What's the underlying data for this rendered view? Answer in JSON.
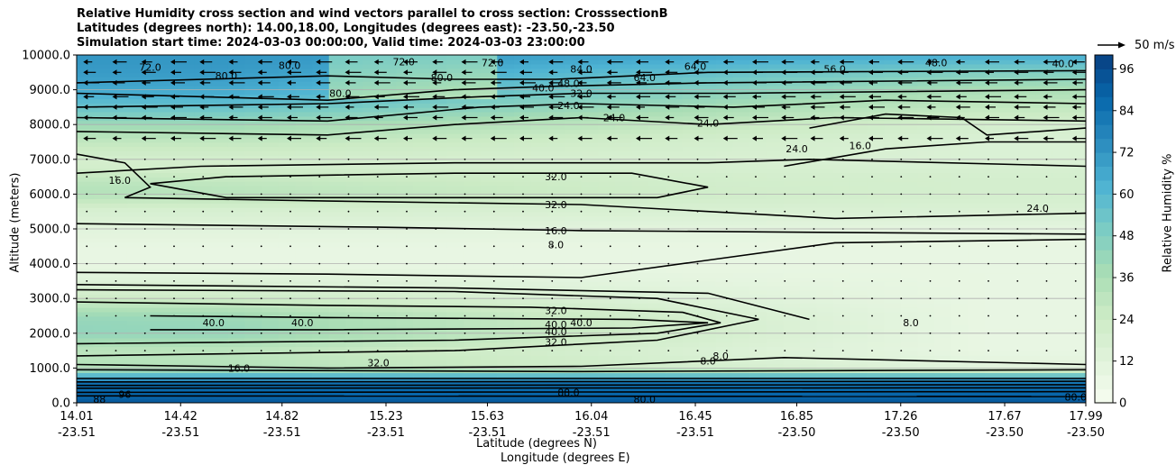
{
  "chart_data": {
    "type": "heatmap",
    "title_lines": [
      "Relative Humidity cross section and wind vectors parallel to cross section: CrosssectionB",
      "Latitudes (degrees north): 14.00,18.00, Longitudes (degrees east): -23.50,-23.50",
      "Simulation start time: 2024-03-03 00:00:00, Valid time: 2024-03-03 23:00:00"
    ],
    "ylabel": "Altitude (meters)",
    "xlabel_lat": "Latitude (degrees N)",
    "xlabel_lon": "Longitude (degrees E)",
    "ylim": [
      0,
      10000
    ],
    "yticks": [
      "0.0",
      "1000.0",
      "2000.0",
      "3000.0",
      "4000.0",
      "5000.0",
      "6000.0",
      "7000.0",
      "8000.0",
      "9000.0",
      "10000.0"
    ],
    "xticks_lat": [
      "14.01",
      "14.42",
      "14.82",
      "15.23",
      "15.63",
      "16.04",
      "16.45",
      "16.85",
      "17.26",
      "17.67",
      "17.99"
    ],
    "xticks_lon": [
      "-23.51",
      "-23.51",
      "-23.51",
      "-23.51",
      "-23.51",
      "-23.51",
      "-23.51",
      "-23.50",
      "-23.50",
      "-23.50",
      "-23.50"
    ],
    "colorbar": {
      "label": "Relative Humidity %",
      "min": 0,
      "max": 100,
      "ticks": [
        "0",
        "12",
        "24",
        "36",
        "48",
        "60",
        "72",
        "84",
        "96"
      ]
    },
    "quiver_key": "50 m/s",
    "profile_altitudes": [
      0,
      300,
      600,
      800,
      1000,
      1500,
      2000,
      2500,
      3000,
      3500,
      4000,
      4500,
      5000,
      5500,
      6000,
      6500,
      7000,
      7500,
      8000,
      8500,
      9000,
      9500,
      10000
    ],
    "profile_rh_left": [
      92,
      88,
      84,
      60,
      34,
      30,
      38,
      36,
      24,
      14,
      8,
      8,
      12,
      18,
      26,
      22,
      20,
      28,
      40,
      55,
      66,
      70,
      72
    ],
    "profile_rh_right": [
      92,
      88,
      82,
      55,
      12,
      8,
      8,
      8,
      8,
      8,
      8,
      8,
      10,
      16,
      20,
      20,
      16,
      16,
      20,
      28,
      36,
      48,
      64
    ],
    "contour_labels": [
      {
        "text": "72.0",
        "lat": 14.3,
        "z": 9650
      },
      {
        "text": "80.0",
        "lat": 14.6,
        "z": 9400
      },
      {
        "text": "80.0",
        "lat": 14.85,
        "z": 9700
      },
      {
        "text": "80.0",
        "lat": 15.05,
        "z": 8900
      },
      {
        "text": "72.0",
        "lat": 15.3,
        "z": 9800
      },
      {
        "text": "80.0",
        "lat": 15.45,
        "z": 9350
      },
      {
        "text": "72.0",
        "lat": 15.65,
        "z": 9780
      },
      {
        "text": "84.0",
        "lat": 16.0,
        "z": 9600
      },
      {
        "text": "64.0",
        "lat": 16.25,
        "z": 9350
      },
      {
        "text": "48.0",
        "lat": 15.95,
        "z": 9180
      },
      {
        "text": "40.0",
        "lat": 15.85,
        "z": 9050
      },
      {
        "text": "32.0",
        "lat": 16.0,
        "z": 8900
      },
      {
        "text": "24.0",
        "lat": 15.95,
        "z": 8550
      },
      {
        "text": "24.0",
        "lat": 16.13,
        "z": 8200
      },
      {
        "text": "24.0",
        "lat": 16.5,
        "z": 8050
      },
      {
        "text": "64.0",
        "lat": 16.45,
        "z": 9680
      },
      {
        "text": "56.0",
        "lat": 17.0,
        "z": 9600
      },
      {
        "text": "48.0",
        "lat": 17.4,
        "z": 9780
      },
      {
        "text": "40.0",
        "lat": 17.9,
        "z": 9750
      },
      {
        "text": "16.0",
        "lat": 17.1,
        "z": 7400
      },
      {
        "text": "24.0",
        "lat": 16.85,
        "z": 7300
      },
      {
        "text": "16.0",
        "lat": 14.18,
        "z": 6400
      },
      {
        "text": "32.0",
        "lat": 15.9,
        "z": 6500
      },
      {
        "text": "32.0",
        "lat": 15.9,
        "z": 5700
      },
      {
        "text": "24.0",
        "lat": 17.8,
        "z": 5600
      },
      {
        "text": "16.0",
        "lat": 15.9,
        "z": 4950
      },
      {
        "text": "8.0",
        "lat": 15.9,
        "z": 4550
      },
      {
        "text": "32.0",
        "lat": 15.9,
        "z": 2650
      },
      {
        "text": "40.0",
        "lat": 15.9,
        "z": 2250
      },
      {
        "text": "40.0",
        "lat": 16.0,
        "z": 2300
      },
      {
        "text": "40.0",
        "lat": 15.9,
        "z": 2050
      },
      {
        "text": "32.0",
        "lat": 15.9,
        "z": 1750
      },
      {
        "text": "40.0",
        "lat": 14.55,
        "z": 2300
      },
      {
        "text": "40.0",
        "lat": 14.9,
        "z": 2300
      },
      {
        "text": "8.0",
        "lat": 17.3,
        "z": 2300
      },
      {
        "text": "8.0",
        "lat": 16.5,
        "z": 1200
      },
      {
        "text": "8.0",
        "lat": 16.55,
        "z": 1350
      },
      {
        "text": "32.0",
        "lat": 15.2,
        "z": 1150
      },
      {
        "text": "16.0",
        "lat": 14.65,
        "z": 1000
      },
      {
        "text": "88.0",
        "lat": 15.95,
        "z": 300
      },
      {
        "text": "80.0",
        "lat": 16.25,
        "z": 100
      },
      {
        "text": "80.0",
        "lat": 17.95,
        "z": 170
      },
      {
        "text": "96",
        "lat": 14.2,
        "z": 250
      },
      {
        "text": "88",
        "lat": 14.1,
        "z": 100
      }
    ],
    "wind_rows_z": [
      9800,
      9500,
      9200,
      8800,
      8500,
      8200,
      7600
    ],
    "wind_dot_rows_z": [
      7000,
      6500,
      6000,
      5500,
      5000,
      4500,
      4000,
      3500,
      3000,
      2500,
      2000,
      1500
    ]
  }
}
